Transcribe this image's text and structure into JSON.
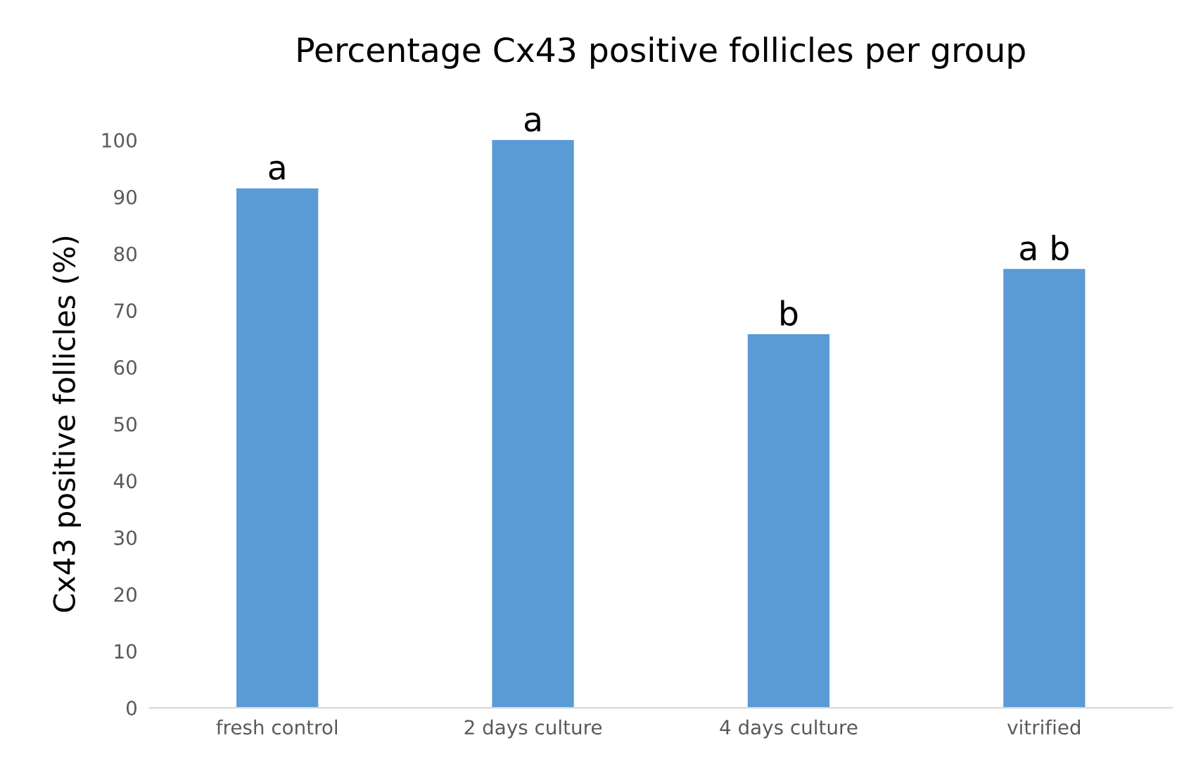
{
  "chart_data": {
    "type": "bar",
    "title": "Percentage Cx43 positive follicles per group",
    "ylabel": "Cx43 positive follicles (%)",
    "categories": [
      "fresh control",
      "2 days culture",
      "4 days culture",
      "vitrified"
    ],
    "values": [
      91.5,
      100,
      65.8,
      77.3
    ],
    "color": "#5b9bd5",
    "ylim": [
      0,
      100
    ],
    "yticks": [
      0,
      10,
      20,
      30,
      40,
      50,
      60,
      70,
      80,
      90,
      100
    ],
    "grid": false,
    "annotations": [
      {
        "text": "a",
        "x": "fresh control",
        "y": 91.5
      },
      {
        "text": "a",
        "x": "2 days culture",
        "y": 100
      },
      {
        "text": "b",
        "x": "4 days culture",
        "y": 65.8
      },
      {
        "text": "a b",
        "x": "vitrified",
        "y": 77.3
      }
    ]
  }
}
